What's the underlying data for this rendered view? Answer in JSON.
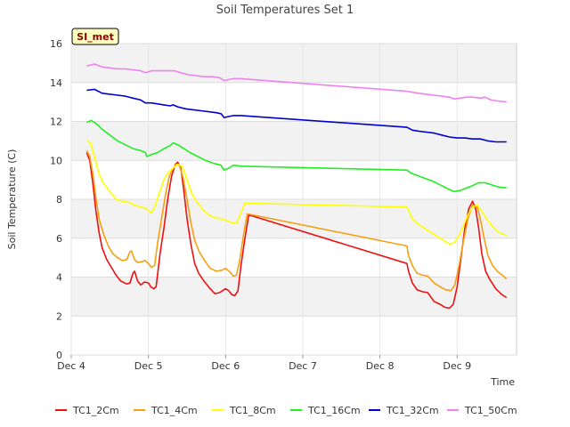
{
  "chart_data": {
    "type": "line",
    "title": "Soil Temperatures Set 1",
    "xlabel": "Time",
    "ylabel": "Soil Temperature (C)",
    "badge": "SI_met",
    "x_ticks": [
      "Dec 4",
      "Dec 5",
      "Dec 6",
      "Dec 7",
      "Dec 8",
      "Dec 9"
    ],
    "x_range": [
      0,
      5.77
    ],
    "y_ticks": [
      0,
      2,
      4,
      6,
      8,
      10,
      12,
      14,
      16
    ],
    "ylim": [
      0,
      16
    ],
    "grid": true,
    "legend_position": "bottom",
    "series": [
      {
        "name": "TC1_2Cm",
        "color": "#ee1111",
        "points": [
          [
            0.2,
            10.4
          ],
          [
            0.24,
            10.0
          ],
          [
            0.28,
            8.8
          ],
          [
            0.32,
            7.4
          ],
          [
            0.36,
            6.3
          ],
          [
            0.4,
            5.5
          ],
          [
            0.46,
            4.9
          ],
          [
            0.52,
            4.5
          ],
          [
            0.58,
            4.1
          ],
          [
            0.64,
            3.8
          ],
          [
            0.72,
            3.65
          ],
          [
            0.76,
            3.7
          ],
          [
            0.8,
            4.2
          ],
          [
            0.82,
            4.3
          ],
          [
            0.86,
            3.8
          ],
          [
            0.9,
            3.6
          ],
          [
            0.95,
            3.75
          ],
          [
            1.0,
            3.7
          ],
          [
            1.03,
            3.5
          ],
          [
            1.07,
            3.4
          ],
          [
            1.1,
            3.5
          ],
          [
            1.15,
            5.2
          ],
          [
            1.2,
            6.5
          ],
          [
            1.25,
            8.0
          ],
          [
            1.3,
            9.2
          ],
          [
            1.35,
            9.8
          ],
          [
            1.38,
            9.9
          ],
          [
            1.42,
            9.6
          ],
          [
            1.46,
            8.4
          ],
          [
            1.5,
            7.0
          ],
          [
            1.55,
            5.7
          ],
          [
            1.6,
            4.7
          ],
          [
            1.65,
            4.2
          ],
          [
            1.72,
            3.8
          ],
          [
            1.8,
            3.4
          ],
          [
            1.86,
            3.15
          ],
          [
            1.92,
            3.2
          ],
          [
            2.0,
            3.4
          ],
          [
            2.04,
            3.3
          ],
          [
            2.08,
            3.1
          ],
          [
            2.12,
            3.05
          ],
          [
            2.16,
            3.3
          ],
          [
            2.2,
            4.6
          ],
          [
            2.25,
            6.0
          ],
          [
            2.3,
            7.2
          ],
          [
            4.35,
            4.7
          ],
          [
            4.37,
            4.3
          ],
          [
            4.42,
            3.7
          ],
          [
            4.48,
            3.35
          ],
          [
            4.55,
            3.25
          ],
          [
            4.62,
            3.2
          ],
          [
            4.7,
            2.75
          ],
          [
            4.78,
            2.6
          ],
          [
            4.84,
            2.45
          ],
          [
            4.9,
            2.4
          ],
          [
            4.95,
            2.6
          ],
          [
            5.0,
            3.5
          ],
          [
            5.05,
            5.0
          ],
          [
            5.1,
            6.5
          ],
          [
            5.15,
            7.5
          ],
          [
            5.2,
            7.9
          ],
          [
            5.24,
            7.5
          ],
          [
            5.28,
            6.5
          ],
          [
            5.32,
            5.2
          ],
          [
            5.37,
            4.3
          ],
          [
            5.42,
            3.9
          ],
          [
            5.5,
            3.4
          ],
          [
            5.58,
            3.1
          ],
          [
            5.64,
            2.95
          ]
        ]
      },
      {
        "name": "TC1_4Cm",
        "color": "#f5a011",
        "points": [
          [
            0.2,
            10.5
          ],
          [
            0.24,
            10.2
          ],
          [
            0.28,
            9.3
          ],
          [
            0.32,
            8.1
          ],
          [
            0.36,
            7.0
          ],
          [
            0.42,
            6.2
          ],
          [
            0.48,
            5.6
          ],
          [
            0.54,
            5.2
          ],
          [
            0.6,
            5.0
          ],
          [
            0.66,
            4.85
          ],
          [
            0.72,
            4.9
          ],
          [
            0.76,
            5.3
          ],
          [
            0.78,
            5.35
          ],
          [
            0.82,
            4.9
          ],
          [
            0.86,
            4.75
          ],
          [
            0.92,
            4.8
          ],
          [
            0.96,
            4.85
          ],
          [
            1.0,
            4.7
          ],
          [
            1.04,
            4.5
          ],
          [
            1.08,
            4.6
          ],
          [
            1.12,
            5.8
          ],
          [
            1.17,
            7.0
          ],
          [
            1.22,
            8.2
          ],
          [
            1.27,
            9.2
          ],
          [
            1.32,
            9.6
          ],
          [
            1.36,
            9.8
          ],
          [
            1.4,
            9.75
          ],
          [
            1.45,
            9.1
          ],
          [
            1.5,
            8.0
          ],
          [
            1.55,
            6.8
          ],
          [
            1.6,
            5.9
          ],
          [
            1.66,
            5.3
          ],
          [
            1.72,
            4.9
          ],
          [
            1.8,
            4.45
          ],
          [
            1.88,
            4.3
          ],
          [
            1.95,
            4.35
          ],
          [
            2.0,
            4.45
          ],
          [
            2.06,
            4.25
          ],
          [
            2.1,
            4.05
          ],
          [
            2.14,
            4.1
          ],
          [
            2.18,
            4.8
          ],
          [
            2.23,
            6.1
          ],
          [
            2.28,
            7.25
          ],
          [
            4.35,
            5.6
          ],
          [
            4.37,
            5.1
          ],
          [
            4.42,
            4.6
          ],
          [
            4.48,
            4.2
          ],
          [
            4.55,
            4.1
          ],
          [
            4.62,
            4.05
          ],
          [
            4.7,
            3.7
          ],
          [
            4.78,
            3.5
          ],
          [
            4.85,
            3.35
          ],
          [
            4.92,
            3.3
          ],
          [
            4.97,
            3.6
          ],
          [
            5.02,
            4.5
          ],
          [
            5.08,
            5.8
          ],
          [
            5.14,
            7.0
          ],
          [
            5.2,
            7.7
          ],
          [
            5.26,
            7.6
          ],
          [
            5.3,
            7.0
          ],
          [
            5.35,
            6.0
          ],
          [
            5.4,
            5.1
          ],
          [
            5.46,
            4.6
          ],
          [
            5.52,
            4.3
          ],
          [
            5.6,
            4.05
          ],
          [
            5.64,
            3.9
          ]
        ]
      },
      {
        "name": "TC1_8Cm",
        "color": "#ffff00",
        "points": [
          [
            0.2,
            11.0
          ],
          [
            0.25,
            10.9
          ],
          [
            0.3,
            10.2
          ],
          [
            0.36,
            9.3
          ],
          [
            0.42,
            8.8
          ],
          [
            0.5,
            8.4
          ],
          [
            0.58,
            8.0
          ],
          [
            0.66,
            7.9
          ],
          [
            0.74,
            7.85
          ],
          [
            0.82,
            7.7
          ],
          [
            0.9,
            7.6
          ],
          [
            0.96,
            7.55
          ],
          [
            1.0,
            7.4
          ],
          [
            1.04,
            7.3
          ],
          [
            1.08,
            7.6
          ],
          [
            1.14,
            8.3
          ],
          [
            1.2,
            9.0
          ],
          [
            1.26,
            9.4
          ],
          [
            1.32,
            9.6
          ],
          [
            1.38,
            9.8
          ],
          [
            1.44,
            9.7
          ],
          [
            1.5,
            9.0
          ],
          [
            1.56,
            8.3
          ],
          [
            1.62,
            7.9
          ],
          [
            1.7,
            7.5
          ],
          [
            1.78,
            7.2
          ],
          [
            1.86,
            7.05
          ],
          [
            1.94,
            7.0
          ],
          [
            2.02,
            6.9
          ],
          [
            2.08,
            6.8
          ],
          [
            2.14,
            6.75
          ],
          [
            2.2,
            7.3
          ],
          [
            2.25,
            7.8
          ],
          [
            4.35,
            7.6
          ],
          [
            4.38,
            7.35
          ],
          [
            4.42,
            7.0
          ],
          [
            4.5,
            6.7
          ],
          [
            4.58,
            6.5
          ],
          [
            4.66,
            6.3
          ],
          [
            4.74,
            6.1
          ],
          [
            4.82,
            5.9
          ],
          [
            4.9,
            5.7
          ],
          [
            4.96,
            5.75
          ],
          [
            5.02,
            6.1
          ],
          [
            5.08,
            6.6
          ],
          [
            5.14,
            7.2
          ],
          [
            5.2,
            7.6
          ],
          [
            5.26,
            7.7
          ],
          [
            5.32,
            7.4
          ],
          [
            5.38,
            7.0
          ],
          [
            5.46,
            6.6
          ],
          [
            5.54,
            6.3
          ],
          [
            5.6,
            6.2
          ],
          [
            5.64,
            6.15
          ]
        ]
      },
      {
        "name": "TC1_16Cm",
        "color": "#22ee22",
        "points": [
          [
            0.2,
            11.95
          ],
          [
            0.26,
            12.05
          ],
          [
            0.32,
            11.9
          ],
          [
            0.4,
            11.6
          ],
          [
            0.5,
            11.3
          ],
          [
            0.6,
            11.0
          ],
          [
            0.7,
            10.8
          ],
          [
            0.8,
            10.6
          ],
          [
            0.9,
            10.5
          ],
          [
            0.96,
            10.4
          ],
          [
            0.98,
            10.2
          ],
          [
            1.04,
            10.3
          ],
          [
            1.12,
            10.4
          ],
          [
            1.2,
            10.6
          ],
          [
            1.28,
            10.75
          ],
          [
            1.32,
            10.9
          ],
          [
            1.38,
            10.8
          ],
          [
            1.46,
            10.6
          ],
          [
            1.54,
            10.4
          ],
          [
            1.64,
            10.2
          ],
          [
            1.74,
            10.0
          ],
          [
            1.84,
            9.85
          ],
          [
            1.94,
            9.75
          ],
          [
            1.98,
            9.5
          ],
          [
            2.04,
            9.6
          ],
          [
            2.1,
            9.75
          ],
          [
            2.2,
            9.7
          ],
          [
            4.35,
            9.5
          ],
          [
            4.4,
            9.35
          ],
          [
            4.5,
            9.2
          ],
          [
            4.6,
            9.05
          ],
          [
            4.7,
            8.9
          ],
          [
            4.8,
            8.7
          ],
          [
            4.9,
            8.5
          ],
          [
            4.96,
            8.4
          ],
          [
            5.04,
            8.45
          ],
          [
            5.1,
            8.55
          ],
          [
            5.2,
            8.7
          ],
          [
            5.28,
            8.85
          ],
          [
            5.36,
            8.85
          ],
          [
            5.44,
            8.75
          ],
          [
            5.52,
            8.65
          ],
          [
            5.58,
            8.6
          ],
          [
            5.64,
            8.6
          ]
        ]
      },
      {
        "name": "TC1_32Cm",
        "color": "#0000cc",
        "points": [
          [
            0.2,
            13.6
          ],
          [
            0.3,
            13.65
          ],
          [
            0.4,
            13.45
          ],
          [
            0.5,
            13.4
          ],
          [
            0.6,
            13.35
          ],
          [
            0.7,
            13.3
          ],
          [
            0.8,
            13.2
          ],
          [
            0.9,
            13.1
          ],
          [
            0.96,
            12.95
          ],
          [
            1.04,
            12.95
          ],
          [
            1.12,
            12.9
          ],
          [
            1.2,
            12.85
          ],
          [
            1.28,
            12.8
          ],
          [
            1.32,
            12.85
          ],
          [
            1.38,
            12.75
          ],
          [
            1.48,
            12.65
          ],
          [
            1.58,
            12.6
          ],
          [
            1.68,
            12.55
          ],
          [
            1.78,
            12.5
          ],
          [
            1.88,
            12.45
          ],
          [
            1.94,
            12.4
          ],
          [
            1.98,
            12.2
          ],
          [
            2.04,
            12.25
          ],
          [
            2.1,
            12.3
          ],
          [
            2.2,
            12.3
          ],
          [
            4.35,
            11.7
          ],
          [
            4.42,
            11.55
          ],
          [
            4.5,
            11.5
          ],
          [
            4.6,
            11.45
          ],
          [
            4.7,
            11.4
          ],
          [
            4.8,
            11.3
          ],
          [
            4.9,
            11.2
          ],
          [
            5.0,
            11.15
          ],
          [
            5.1,
            11.15
          ],
          [
            5.2,
            11.1
          ],
          [
            5.3,
            11.1
          ],
          [
            5.4,
            11.0
          ],
          [
            5.5,
            10.95
          ],
          [
            5.64,
            10.95
          ]
        ]
      },
      {
        "name": "TC1_50Cm",
        "color": "#ee82ee",
        "points": [
          [
            0.2,
            14.85
          ],
          [
            0.3,
            14.95
          ],
          [
            0.4,
            14.8
          ],
          [
            0.5,
            14.75
          ],
          [
            0.6,
            14.7
          ],
          [
            0.7,
            14.7
          ],
          [
            0.8,
            14.65
          ],
          [
            0.9,
            14.6
          ],
          [
            0.96,
            14.5
          ],
          [
            1.04,
            14.6
          ],
          [
            1.12,
            14.6
          ],
          [
            1.2,
            14.6
          ],
          [
            1.28,
            14.6
          ],
          [
            1.34,
            14.6
          ],
          [
            1.42,
            14.5
          ],
          [
            1.52,
            14.4
          ],
          [
            1.62,
            14.35
          ],
          [
            1.72,
            14.3
          ],
          [
            1.82,
            14.3
          ],
          [
            1.92,
            14.25
          ],
          [
            1.98,
            14.1
          ],
          [
            2.04,
            14.15
          ],
          [
            2.1,
            14.2
          ],
          [
            2.2,
            14.2
          ],
          [
            4.35,
            13.55
          ],
          [
            4.42,
            13.5
          ],
          [
            4.5,
            13.45
          ],
          [
            4.6,
            13.4
          ],
          [
            4.7,
            13.35
          ],
          [
            4.8,
            13.3
          ],
          [
            4.9,
            13.25
          ],
          [
            4.96,
            13.15
          ],
          [
            5.04,
            13.2
          ],
          [
            5.12,
            13.25
          ],
          [
            5.2,
            13.25
          ],
          [
            5.3,
            13.2
          ],
          [
            5.36,
            13.25
          ],
          [
            5.44,
            13.1
          ],
          [
            5.52,
            13.05
          ],
          [
            5.64,
            13.0
          ]
        ]
      }
    ]
  }
}
